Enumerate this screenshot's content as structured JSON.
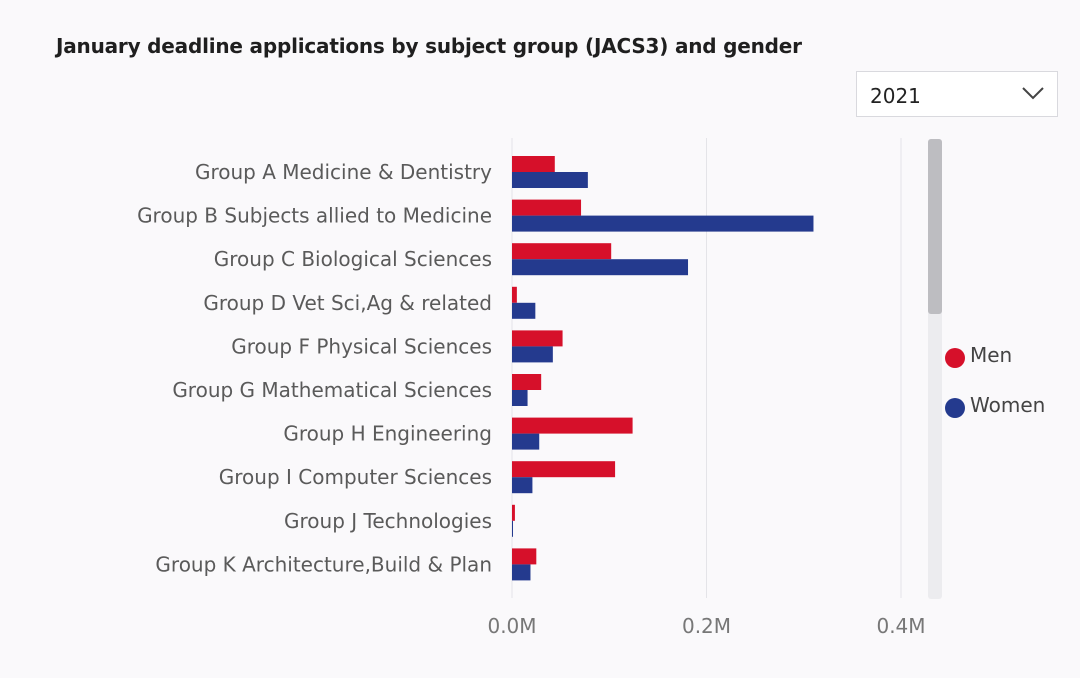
{
  "title": "January deadline applications by subject group (JACS3) and gender",
  "filter": {
    "selected": "2021",
    "icon": "chevron-down-icon"
  },
  "legend": [
    {
      "name": "Men",
      "color": "#d6102a"
    },
    {
      "name": "Women",
      "color": "#243a8e"
    }
  ],
  "chart_data": {
    "type": "bar",
    "orientation": "horizontal",
    "title": "January deadline applications by subject group (JACS3) and gender",
    "categories": [
      "Group A Medicine & Dentistry",
      "Group B Subjects allied to Medicine",
      "Group C Biological Sciences",
      "Group D Vet Sci,Ag & related",
      "Group F Physical Sciences",
      "Group G Mathematical Sciences",
      "Group H Engineering",
      "Group I Computer Sciences",
      "Group J Technologies",
      "Group K Architecture,Build & Plan"
    ],
    "series": [
      {
        "name": "Men",
        "color": "#d6102a",
        "values": [
          44000,
          71000,
          102000,
          5000,
          52000,
          30000,
          124000,
          106000,
          3000,
          25000
        ]
      },
      {
        "name": "Women",
        "color": "#243a8e",
        "values": [
          78000,
          310000,
          181000,
          24000,
          42000,
          16000,
          28000,
          21000,
          1000,
          19000
        ]
      }
    ],
    "xlim": [
      0,
      400000
    ],
    "xticks": [
      0,
      200000,
      400000
    ],
    "xtick_labels": [
      "0.0M",
      "0.2M",
      "0.4M"
    ],
    "grid": true,
    "legend_position": "right"
  }
}
